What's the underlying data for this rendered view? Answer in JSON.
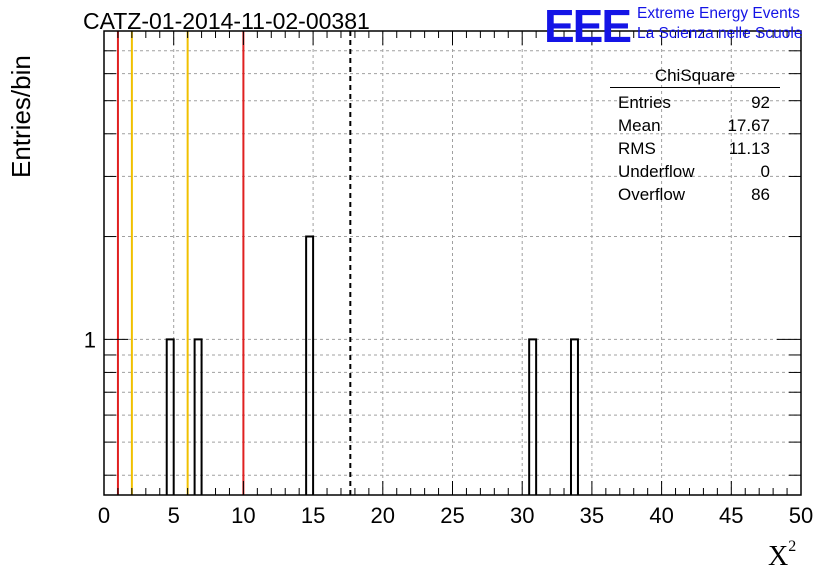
{
  "title": "CATZ-01-2014-11-02-00381",
  "logo": {
    "letters": "EEE",
    "line1": "Extreme Energy Events",
    "line2": "La Scienza nelle Scuole",
    "color": "#1414e6"
  },
  "stats": {
    "header": "ChiSquare",
    "rows": [
      {
        "label": "Entries",
        "value": "92"
      },
      {
        "label": "Mean",
        "value": "17.67"
      },
      {
        "label": "RMS",
        "value": "11.13"
      },
      {
        "label": "Underflow",
        "value": "0"
      },
      {
        "label": "Overflow",
        "value": "86"
      }
    ]
  },
  "chart_data": {
    "type": "bar",
    "title": "CATZ-01-2014-11-02-00381",
    "xlabel": "X",
    "xlabel_superscript": "2",
    "ylabel": "Entries/bin",
    "xlim": [
      0,
      50
    ],
    "yscale": "log",
    "ylim": [
      0.35,
      8
    ],
    "xticks": [
      "0",
      "5",
      "10",
      "15",
      "20",
      "25",
      "30",
      "35",
      "40",
      "45",
      "50"
    ],
    "yticks": [
      "1"
    ],
    "grid": true,
    "bin_width": 0.5,
    "bins": [
      {
        "x": 4.75,
        "count": 1
      },
      {
        "x": 6.75,
        "count": 1
      },
      {
        "x": 14.75,
        "count": 2
      },
      {
        "x": 30.75,
        "count": 1
      },
      {
        "x": 33.75,
        "count": 1
      }
    ],
    "vertical_lines": [
      {
        "x": 1,
        "color": "#e02020",
        "style": "solid"
      },
      {
        "x": 2,
        "color": "#f0c000",
        "style": "solid"
      },
      {
        "x": 6,
        "color": "#f0c000",
        "style": "solid"
      },
      {
        "x": 10,
        "color": "#e02020",
        "style": "solid"
      },
      {
        "x": 17.67,
        "color": "#000000",
        "style": "dashed"
      }
    ]
  }
}
